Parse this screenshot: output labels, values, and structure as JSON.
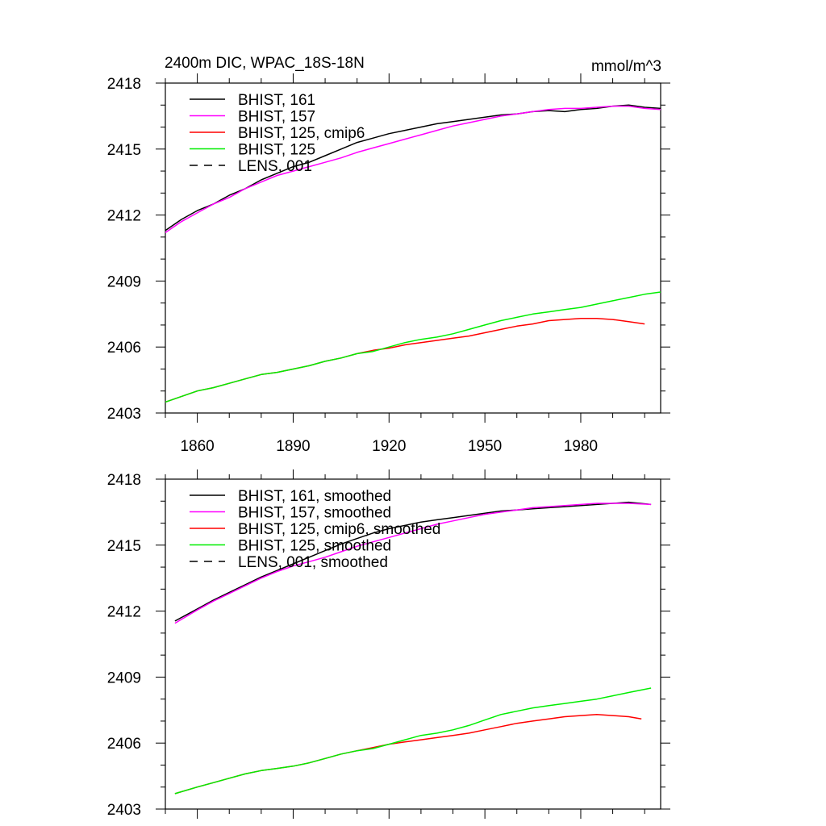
{
  "header": {
    "title": "2400m DIC, WPAC_18S-18N",
    "units": "mmol/m^3"
  },
  "chart_data": [
    {
      "type": "line",
      "xlim": [
        1850,
        2005
      ],
      "ylim": [
        2403,
        2418
      ],
      "xticks": [
        1860,
        1890,
        1920,
        1950,
        1980
      ],
      "yticks": [
        2403,
        2406,
        2409,
        2412,
        2415,
        2418
      ],
      "show_xtick_labels": true,
      "legend": "top-left",
      "grid": false,
      "series": [
        {
          "name": "BHIST, 161",
          "color": "#000000",
          "dash": "solid",
          "x": [
            1850,
            1855,
            1860,
            1865,
            1870,
            1875,
            1880,
            1885,
            1890,
            1895,
            1900,
            1905,
            1910,
            1915,
            1920,
            1925,
            1930,
            1935,
            1940,
            1945,
            1950,
            1955,
            1960,
            1965,
            1970,
            1975,
            1980,
            1985,
            1990,
            1995,
            2000,
            2005
          ],
          "y": [
            2411.3,
            2411.8,
            2412.2,
            2412.5,
            2412.9,
            2413.2,
            2413.6,
            2413.9,
            2414.2,
            2414.4,
            2414.7,
            2415.0,
            2415.3,
            2415.5,
            2415.7,
            2415.85,
            2416.0,
            2416.15,
            2416.25,
            2416.35,
            2416.45,
            2416.55,
            2416.6,
            2416.7,
            2416.75,
            2416.7,
            2416.8,
            2416.85,
            2416.95,
            2417.0,
            2416.9,
            2416.85
          ]
        },
        {
          "name": "BHIST, 157",
          "color": "#ff00ff",
          "dash": "solid",
          "x": [
            1850,
            1855,
            1860,
            1865,
            1870,
            1875,
            1880,
            1885,
            1890,
            1895,
            1900,
            1905,
            1910,
            1915,
            1920,
            1925,
            1930,
            1935,
            1940,
            1945,
            1950,
            1955,
            1960,
            1965,
            1970,
            1975,
            1980,
            1985,
            1990,
            1995,
            2000,
            2005
          ],
          "y": [
            2411.2,
            2411.7,
            2412.1,
            2412.5,
            2412.8,
            2413.2,
            2413.5,
            2413.8,
            2414.0,
            2414.2,
            2414.4,
            2414.6,
            2414.85,
            2415.05,
            2415.25,
            2415.45,
            2415.65,
            2415.85,
            2416.05,
            2416.2,
            2416.35,
            2416.5,
            2416.6,
            2416.7,
            2416.8,
            2416.85,
            2416.85,
            2416.9,
            2416.95,
            2416.95,
            2416.85,
            2416.8
          ]
        },
        {
          "name": "BHIST, 125, cmip6",
          "color": "#ff0000",
          "dash": "solid",
          "x": [
            1850,
            1855,
            1860,
            1865,
            1870,
            1875,
            1880,
            1885,
            1890,
            1895,
            1900,
            1905,
            1910,
            1915,
            1920,
            1925,
            1930,
            1935,
            1940,
            1945,
            1950,
            1955,
            1960,
            1965,
            1970,
            1975,
            1980,
            1985,
            1990,
            1995,
            2000
          ],
          "y": [
            2403.5,
            2403.75,
            2404.0,
            2404.15,
            2404.35,
            2404.55,
            2404.75,
            2404.85,
            2405.0,
            2405.15,
            2405.35,
            2405.5,
            2405.7,
            2405.85,
            2405.95,
            2406.1,
            2406.2,
            2406.3,
            2406.4,
            2406.5,
            2406.65,
            2406.8,
            2406.95,
            2407.05,
            2407.2,
            2407.25,
            2407.3,
            2407.3,
            2407.25,
            2407.15,
            2407.05
          ]
        },
        {
          "name": "BHIST, 125",
          "color": "#00ee00",
          "dash": "solid",
          "x": [
            1850,
            1855,
            1860,
            1865,
            1870,
            1875,
            1880,
            1885,
            1890,
            1895,
            1900,
            1905,
            1910,
            1915,
            1920,
            1925,
            1930,
            1935,
            1940,
            1945,
            1950,
            1955,
            1960,
            1965,
            1970,
            1975,
            1980,
            1985,
            1990,
            1995,
            2000,
            2005
          ],
          "y": [
            2403.5,
            2403.75,
            2404.0,
            2404.15,
            2404.35,
            2404.55,
            2404.75,
            2404.85,
            2405.0,
            2405.15,
            2405.35,
            2405.5,
            2405.7,
            2405.8,
            2406.0,
            2406.2,
            2406.35,
            2406.45,
            2406.6,
            2406.8,
            2407.0,
            2407.2,
            2407.35,
            2407.5,
            2407.6,
            2407.7,
            2407.8,
            2407.95,
            2408.1,
            2408.25,
            2408.4,
            2408.5
          ]
        },
        {
          "name": "LENS, 001",
          "color": "#000000",
          "dash": "dashed",
          "x": [],
          "y": []
        }
      ]
    },
    {
      "type": "line",
      "xlim": [
        1850,
        2005
      ],
      "ylim": [
        2403,
        2418
      ],
      "xticks": [
        1860,
        1890,
        1920,
        1950,
        1980
      ],
      "yticks": [
        2403,
        2406,
        2409,
        2412,
        2415,
        2418
      ],
      "show_xtick_labels": false,
      "legend": "top-left",
      "grid": false,
      "series": [
        {
          "name": "BHIST, 161, smoothed",
          "color": "#000000",
          "dash": "solid",
          "x": [
            1853,
            1860,
            1865,
            1870,
            1875,
            1880,
            1885,
            1890,
            1895,
            1900,
            1905,
            1910,
            1915,
            1920,
            1925,
            1930,
            1935,
            1940,
            1945,
            1950,
            1955,
            1960,
            1965,
            1970,
            1975,
            1980,
            1985,
            1990,
            1995,
            2002
          ],
          "y": [
            2411.55,
            2412.1,
            2412.5,
            2412.85,
            2413.2,
            2413.55,
            2413.85,
            2414.15,
            2414.45,
            2414.75,
            2415.05,
            2415.3,
            2415.55,
            2415.75,
            2415.9,
            2416.05,
            2416.15,
            2416.25,
            2416.35,
            2416.45,
            2416.55,
            2416.6,
            2416.65,
            2416.7,
            2416.75,
            2416.8,
            2416.85,
            2416.9,
            2416.95,
            2416.85
          ]
        },
        {
          "name": "BHIST, 157, smoothed",
          "color": "#ff00ff",
          "dash": "solid",
          "x": [
            1853,
            1860,
            1865,
            1870,
            1875,
            1880,
            1885,
            1890,
            1895,
            1900,
            1905,
            1910,
            1915,
            1920,
            1925,
            1930,
            1935,
            1940,
            1945,
            1950,
            1955,
            1960,
            1965,
            1970,
            1975,
            1980,
            1985,
            1990,
            1995,
            2002
          ],
          "y": [
            2411.45,
            2412.05,
            2412.45,
            2412.8,
            2413.15,
            2413.5,
            2413.8,
            2414.05,
            2414.25,
            2414.45,
            2414.7,
            2414.95,
            2415.15,
            2415.35,
            2415.55,
            2415.75,
            2415.95,
            2416.1,
            2416.25,
            2416.4,
            2416.5,
            2416.6,
            2416.7,
            2416.75,
            2416.8,
            2416.85,
            2416.9,
            2416.9,
            2416.9,
            2416.85
          ]
        },
        {
          "name": "BHIST, 125, cmip6, smoothed",
          "color": "#ff0000",
          "dash": "solid",
          "x": [
            1853,
            1860,
            1865,
            1870,
            1875,
            1880,
            1885,
            1890,
            1895,
            1900,
            1905,
            1910,
            1915,
            1920,
            1925,
            1930,
            1935,
            1940,
            1945,
            1950,
            1955,
            1960,
            1965,
            1970,
            1975,
            1980,
            1985,
            1990,
            1995,
            1999
          ],
          "y": [
            2403.7,
            2404.0,
            2404.2,
            2404.4,
            2404.6,
            2404.75,
            2404.85,
            2404.95,
            2405.1,
            2405.3,
            2405.5,
            2405.65,
            2405.8,
            2405.95,
            2406.05,
            2406.15,
            2406.25,
            2406.35,
            2406.45,
            2406.6,
            2406.75,
            2406.9,
            2407.0,
            2407.1,
            2407.2,
            2407.25,
            2407.3,
            2407.25,
            2407.2,
            2407.1
          ]
        },
        {
          "name": "BHIST, 125, smoothed",
          "color": "#00ee00",
          "dash": "solid",
          "x": [
            1853,
            1860,
            1865,
            1870,
            1875,
            1880,
            1885,
            1890,
            1895,
            1900,
            1905,
            1910,
            1915,
            1920,
            1925,
            1930,
            1935,
            1940,
            1945,
            1950,
            1955,
            1960,
            1965,
            1970,
            1975,
            1980,
            1985,
            1990,
            1995,
            2002
          ],
          "y": [
            2403.7,
            2404.0,
            2404.2,
            2404.4,
            2404.6,
            2404.75,
            2404.85,
            2404.95,
            2405.1,
            2405.3,
            2405.5,
            2405.65,
            2405.75,
            2405.95,
            2406.15,
            2406.35,
            2406.45,
            2406.6,
            2406.8,
            2407.05,
            2407.3,
            2407.45,
            2407.6,
            2407.7,
            2407.8,
            2407.9,
            2408.0,
            2408.15,
            2408.3,
            2408.5
          ]
        },
        {
          "name": "LENS, 001, smoothed",
          "color": "#000000",
          "dash": "dashed",
          "x": [],
          "y": []
        }
      ]
    }
  ]
}
